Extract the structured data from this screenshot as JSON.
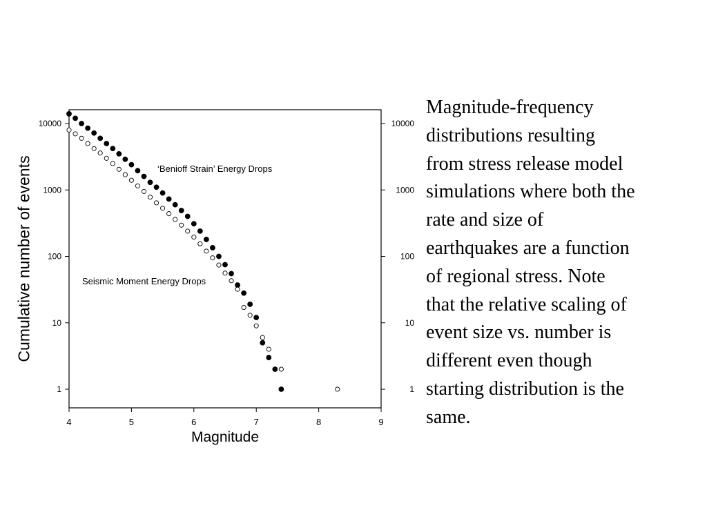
{
  "chart_data": {
    "type": "scatter",
    "xlabel": "Magnitude",
    "ylabel": "Cumulative number of events",
    "xlim": [
      4,
      9
    ],
    "ylim": [
      0.5,
      14000
    ],
    "yscale": "log",
    "xticks": [
      "4",
      "5",
      "6",
      "7",
      "8",
      "9"
    ],
    "yticks": [
      {
        "value": 1,
        "label": "1"
      },
      {
        "value": 10,
        "label": "10"
      },
      {
        "value": 100,
        "label": "100"
      },
      {
        "value": 1000,
        "label": "1000"
      },
      {
        "value": 10000,
        "label": "10000"
      }
    ],
    "right_axis": true,
    "grid": false,
    "annotations": [
      {
        "text": "‘Benioff Strain’ Energy Drops",
        "series": "filled"
      },
      {
        "text": "Seismic Moment Energy Drops",
        "series": "open"
      }
    ],
    "series": [
      {
        "marker": "filled-circle",
        "color": "#000000",
        "x": [
          4.0,
          4.1,
          4.2,
          4.3,
          4.4,
          4.5,
          4.6,
          4.7,
          4.8,
          4.9,
          5.0,
          5.1,
          5.2,
          5.3,
          5.4,
          5.5,
          5.6,
          5.7,
          5.8,
          5.9,
          6.0,
          6.1,
          6.2,
          6.3,
          6.4,
          6.5,
          6.6,
          6.7,
          6.8,
          6.9,
          7.0,
          7.1,
          7.2,
          7.3,
          7.4
        ],
        "y": [
          14000,
          12000,
          10000,
          8500,
          7200,
          6000,
          5000,
          4200,
          3500,
          2900,
          2400,
          1950,
          1600,
          1300,
          1100,
          900,
          730,
          600,
          490,
          400,
          310,
          240,
          180,
          135,
          100,
          75,
          55,
          37,
          28,
          19,
          12,
          5,
          3,
          2,
          1
        ]
      },
      {
        "marker": "open-circle",
        "color": "#000000",
        "x": [
          4.0,
          4.1,
          4.2,
          4.3,
          4.4,
          4.5,
          4.6,
          4.7,
          4.8,
          4.9,
          5.0,
          5.1,
          5.2,
          5.3,
          5.4,
          5.5,
          5.6,
          5.7,
          5.8,
          5.9,
          6.0,
          6.1,
          6.2,
          6.3,
          6.4,
          6.5,
          6.6,
          6.7,
          6.8,
          6.9,
          7.0,
          7.1,
          7.2,
          7.4,
          8.3
        ],
        "y": [
          8000,
          7000,
          6000,
          5000,
          4200,
          3600,
          3000,
          2500,
          2050,
          1700,
          1400,
          1150,
          950,
          780,
          640,
          530,
          440,
          360,
          295,
          240,
          195,
          155,
          120,
          95,
          74,
          56,
          43,
          32,
          17,
          13,
          9,
          6,
          4,
          2,
          1
        ]
      }
    ]
  },
  "caption": {
    "text": "Magnitude-frequency\ndistributions resulting\nfrom stress release model\nsimulations where both the\nrate and size of\nearthquakes are a function\nof regional stress.  Note\nthat the relative scaling of\nevent size vs. number is\ndifferent even though\nstarting distribution is the\nsame."
  }
}
